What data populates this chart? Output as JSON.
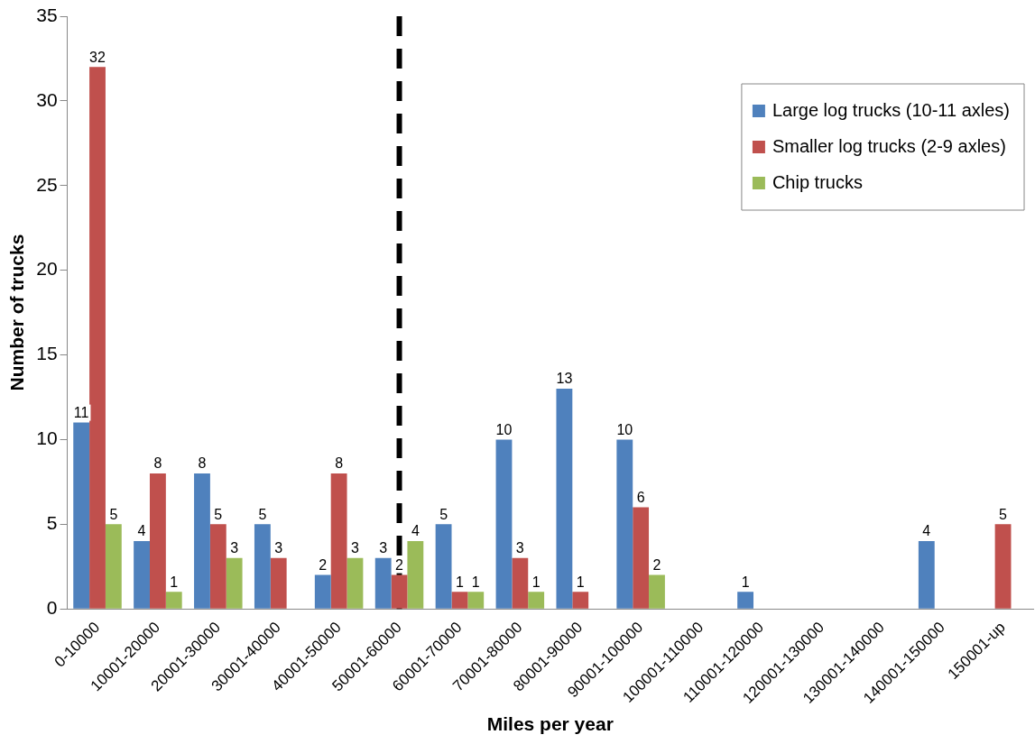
{
  "chart_data": {
    "type": "bar",
    "xlabel": "Miles per year",
    "ylabel": "Number of trucks",
    "categories": [
      "0-10000",
      "10001-20000",
      "20001-30000",
      "30001-40000",
      "40001-50000",
      "50001-60000",
      "60001-70000",
      "70001-80000",
      "80001-90000",
      "90001-100000",
      "100001-110000",
      "110001-120000",
      "120001-130000",
      "130001-140000",
      "140001-150000",
      "150001-up"
    ],
    "series": [
      {
        "name": "Large log trucks (10-11 axles)",
        "color": "#4f81bd",
        "values": [
          11,
          4,
          8,
          5,
          2,
          3,
          5,
          10,
          13,
          10,
          null,
          1,
          null,
          null,
          4,
          null
        ]
      },
      {
        "name": "Smaller log trucks (2-9 axles)",
        "color": "#c0504d",
        "values": [
          32,
          8,
          5,
          3,
          8,
          2,
          1,
          3,
          1,
          6,
          null,
          null,
          null,
          null,
          null,
          5
        ]
      },
      {
        "name": "Chip trucks",
        "color": "#9bbb59",
        "values": [
          5,
          1,
          3,
          null,
          3,
          4,
          1,
          1,
          null,
          2,
          null,
          null,
          null,
          null,
          null,
          null
        ]
      }
    ],
    "ylim": [
      0,
      35
    ],
    "yticks": [
      0,
      5,
      10,
      15,
      20,
      25,
      30,
      35
    ],
    "grid": false,
    "legend": "top right",
    "data_labels": true,
    "ref_lines": [
      {
        "axis": "x",
        "value": "50001-60000",
        "color": "#000000",
        "line_style": "dashed"
      }
    ]
  }
}
